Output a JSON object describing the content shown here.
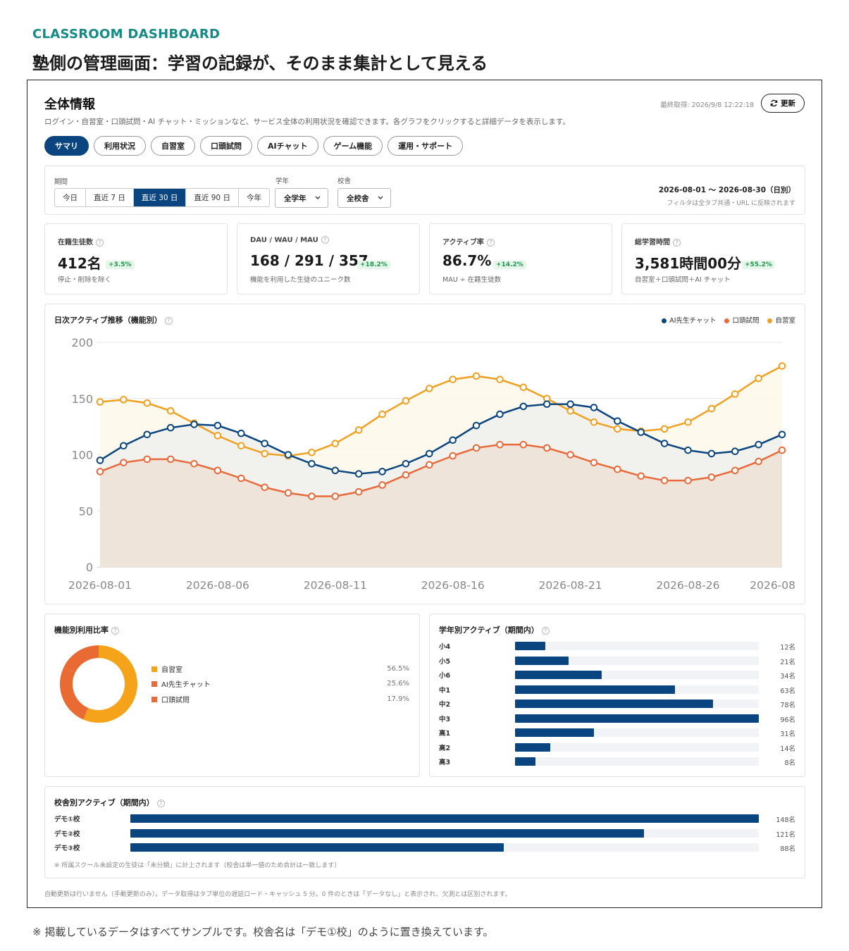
{
  "eyebrow": "CLASSROOM DASHBOARD",
  "headline": "塾側の管理画面：学習の記録が、そのまま集計として見える",
  "footnote": "※ 掲載しているデータはすべてサンプルです。校舎名は「デモ①校」のように置き換えています。",
  "dashboard": {
    "title": "全体情報",
    "description": "ログイン・自習室・口頭試問・AI チャット・ミッションなど、サービス全体の利用状況を確認できます。各グラフをクリックすると詳細データを表示します。",
    "last_fetched": "最終取得: 2026/9/8 12:22:18",
    "refresh_label": "更新",
    "tabs": [
      {
        "label": "サマリ",
        "active": true
      },
      {
        "label": "利用状況",
        "active": false
      },
      {
        "label": "自習室",
        "active": false
      },
      {
        "label": "口頭試問",
        "active": false
      },
      {
        "label": "AIチャット",
        "active": false
      },
      {
        "label": "ゲーム機能",
        "active": false
      },
      {
        "label": "運用・サポート",
        "active": false
      }
    ],
    "filters": {
      "period_label": "期間",
      "periods": [
        {
          "label": "今日",
          "active": false
        },
        {
          "label": "直近 7 日",
          "active": false
        },
        {
          "label": "直近 30 日",
          "active": true
        },
        {
          "label": "直近 90 日",
          "active": false
        },
        {
          "label": "今年",
          "active": false
        }
      ],
      "grade_label": "学年",
      "grade_value": "全学年",
      "school_label": "校舎",
      "school_value": "全校舎",
      "range_text": "2026-08-01 〜 2026-08-30（日別）",
      "range_note": "フィルタは全タブ共通・URL に反映されます"
    },
    "kpis": [
      {
        "label": "在籍生徒数",
        "value": "412名",
        "delta": "+3.5%",
        "note": "停止・削除を除く"
      },
      {
        "label": "DAU / WAU / MAU",
        "value": "168 / 291 / 357",
        "delta": "+18.2%",
        "note": "機能を利用した生徒のユニーク数"
      },
      {
        "label": "アクティブ率",
        "value": "86.7%",
        "delta": "+14.2%",
        "note": "MAU ÷ 在籍生徒数"
      },
      {
        "label": "総学習時間",
        "value": "3,581時間00分",
        "delta": "+55.2%",
        "note": "自習室＋口頭試問＋AI チャット"
      }
    ],
    "daily_title": "日次アクティブ推移（機能別）",
    "feature_title": "機能別利用比率",
    "feature_legend": [
      {
        "label": "自習室",
        "value": "56.5%",
        "pct": 56.5,
        "color": "#f5a31a"
      },
      {
        "label": "AI先生チャット",
        "value": "25.6%",
        "pct": 25.6,
        "color": "#e8693a"
      },
      {
        "label": "口頭試問",
        "value": "17.9%",
        "pct": 17.9,
        "color": "#e8693a"
      }
    ],
    "grade_title": "学年別アクティブ（期間内）",
    "grades": [
      {
        "label": "小4",
        "value": 12,
        "text": "12名"
      },
      {
        "label": "小5",
        "value": 21,
        "text": "21名"
      },
      {
        "label": "小6",
        "value": 34,
        "text": "34名"
      },
      {
        "label": "中1",
        "value": 63,
        "text": "63名"
      },
      {
        "label": "中2",
        "value": 78,
        "text": "78名"
      },
      {
        "label": "中3",
        "value": 96,
        "text": "96名"
      },
      {
        "label": "高1",
        "value": 31,
        "text": "31名"
      },
      {
        "label": "高2",
        "value": 14,
        "text": "14名"
      },
      {
        "label": "高3",
        "value": 8,
        "text": "8名"
      }
    ],
    "school_title": "校舎別アクティブ（期間内）",
    "schools": [
      {
        "label": "デモ①校",
        "value": 148,
        "text": "148名"
      },
      {
        "label": "デモ②校",
        "value": 121,
        "text": "121名"
      },
      {
        "label": "デモ③校",
        "value": 88,
        "text": "88名"
      }
    ],
    "school_note": "※ 所属スクール未設定の生徒は「未分類」に計上されます（校舎は単一値のため合計は一致します）",
    "bottom_note": "自動更新は行いません（手動更新のみ）。データ取得はタブ単位の遅延ロード・キャッシュ 5 分。0 件のときは「データなし」と表示され、欠測とは区別されます。"
  },
  "chart_data": {
    "type": "line",
    "title": "日次アクティブ推移（機能別）",
    "x": [
      "2026-08-01",
      "2026-08-02",
      "2026-08-03",
      "2026-08-04",
      "2026-08-05",
      "2026-08-06",
      "2026-08-07",
      "2026-08-08",
      "2026-08-09",
      "2026-08-10",
      "2026-08-11",
      "2026-08-12",
      "2026-08-13",
      "2026-08-14",
      "2026-08-15",
      "2026-08-16",
      "2026-08-17",
      "2026-08-18",
      "2026-08-19",
      "2026-08-20",
      "2026-08-21",
      "2026-08-22",
      "2026-08-23",
      "2026-08-24",
      "2026-08-25",
      "2026-08-26",
      "2026-08-27",
      "2026-08-28",
      "2026-08-29",
      "2026-08-30"
    ],
    "x_tick_labels": [
      "2026-08-01",
      "2026-08-06",
      "2026-08-11",
      "2026-08-16",
      "2026-08-21",
      "2026-08-26",
      "2026-08"
    ],
    "ylim": [
      0,
      200
    ],
    "y_ticks": [
      0,
      50,
      100,
      150,
      200
    ],
    "grid": true,
    "legend_position": "top-right",
    "series": [
      {
        "name": "AI先生チャット",
        "color": "#0a4580",
        "fill": "#eef0ec",
        "values": [
          95,
          108,
          118,
          124,
          127,
          126,
          119,
          110,
          100,
          92,
          86,
          83,
          85,
          92,
          101,
          113,
          126,
          136,
          143,
          145,
          145,
          142,
          130,
          120,
          110,
          104,
          101,
          103,
          109,
          118
        ]
      },
      {
        "name": "口頭試問",
        "color": "#e8693a",
        "fill": "#efe2d6",
        "values": [
          85,
          93,
          96,
          96,
          92,
          86,
          79,
          71,
          66,
          63,
          63,
          67,
          73,
          82,
          91,
          99,
          106,
          109,
          109,
          106,
          100,
          93,
          87,
          81,
          77,
          77,
          80,
          86,
          94,
          104
        ]
      },
      {
        "name": "自習室",
        "color": "#f0a020",
        "fill": "#fef8ea",
        "values": [
          147,
          149,
          146,
          139,
          128,
          117,
          108,
          101,
          99,
          102,
          110,
          122,
          136,
          148,
          159,
          167,
          170,
          167,
          160,
          150,
          139,
          129,
          123,
          121,
          123,
          129,
          141,
          154,
          168,
          179
        ]
      }
    ]
  }
}
